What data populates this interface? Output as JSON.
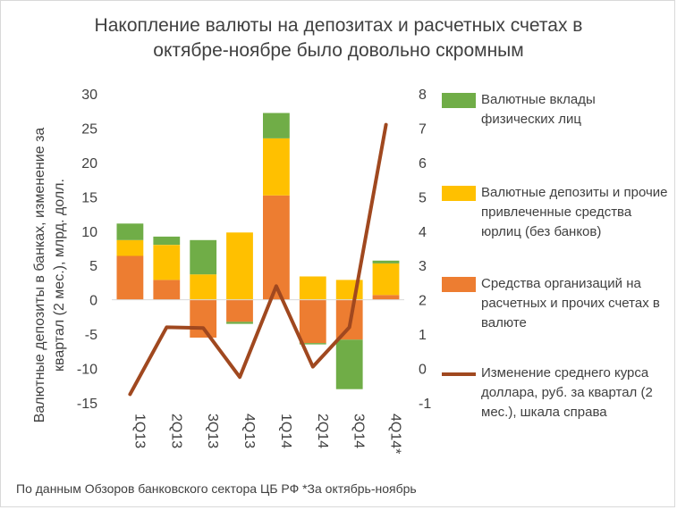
{
  "chart_data": {
    "type": "bar",
    "title": [
      "Накопление валюты на депозитах и расчетных счетах в",
      "октябре-ноябре было довольно скромным"
    ],
    "categories": [
      "1Q13",
      "2Q13",
      "3Q13",
      "4Q13",
      "1Q14",
      "2Q14",
      "3Q14",
      "4Q14*"
    ],
    "ylabel": [
      "Валютные депозиты в банках, изменение за",
      "квартал (2 мес.), млрд. долл."
    ],
    "ylim": [
      -15,
      30
    ],
    "yticks": [
      -15,
      -10,
      -5,
      0,
      5,
      10,
      15,
      20,
      25,
      30
    ],
    "y2lim": [
      -1,
      8
    ],
    "y2ticks": [
      -1,
      0,
      1,
      2,
      3,
      4,
      5,
      6,
      7,
      8
    ],
    "stacked": true,
    "series": [
      {
        "name": "Средства организаций на расчетных и прочих счетах в валюте",
        "color": "#ED7D31",
        "values": [
          6.4,
          2.9,
          -5.5,
          -3.2,
          15.2,
          -6.3,
          -5.8,
          0.7
        ]
      },
      {
        "name": "Валютные депозиты и прочие привлеченные средства юрлиц (без банков)",
        "color": "#FFC000",
        "values": [
          2.3,
          5.1,
          3.7,
          9.8,
          8.3,
          3.4,
          2.9,
          4.6
        ]
      },
      {
        "name": "Валютные вклады физических лиц",
        "color": "#70AD47",
        "values": [
          2.4,
          1.2,
          5.0,
          -0.3,
          3.7,
          -0.2,
          -7.2,
          0.4
        ]
      }
    ],
    "line_series": {
      "name": "Изменение среднего курса доллара, руб. за квартал (2 мес.), шкала справа",
      "color": "#A0481F",
      "axis": "right",
      "values": [
        -0.75,
        1.2,
        1.18,
        -0.25,
        2.4,
        0.05,
        1.2,
        7.1
      ]
    },
    "legend": [
      {
        "label": "Валютные вклады физических лиц",
        "color": "#70AD47",
        "kind": "box"
      },
      {
        "label": "Валютные депозиты и прочие привлеченные средства юрлиц (без банков)",
        "color": "#FFC000",
        "kind": "box"
      },
      {
        "label": "Средства организаций на расчетных и прочих счетах в валюте",
        "color": "#ED7D31",
        "kind": "box"
      },
      {
        "label": "Изменение среднего курса доллара, руб. за квартал (2 мес.), шкала справа",
        "color": "#A0481F",
        "kind": "line"
      }
    ],
    "legend_position": "right",
    "grid": false
  },
  "footnote": "По данным Обзоров банковского сектора ЦБ РФ *За октябрь-ноябрь"
}
